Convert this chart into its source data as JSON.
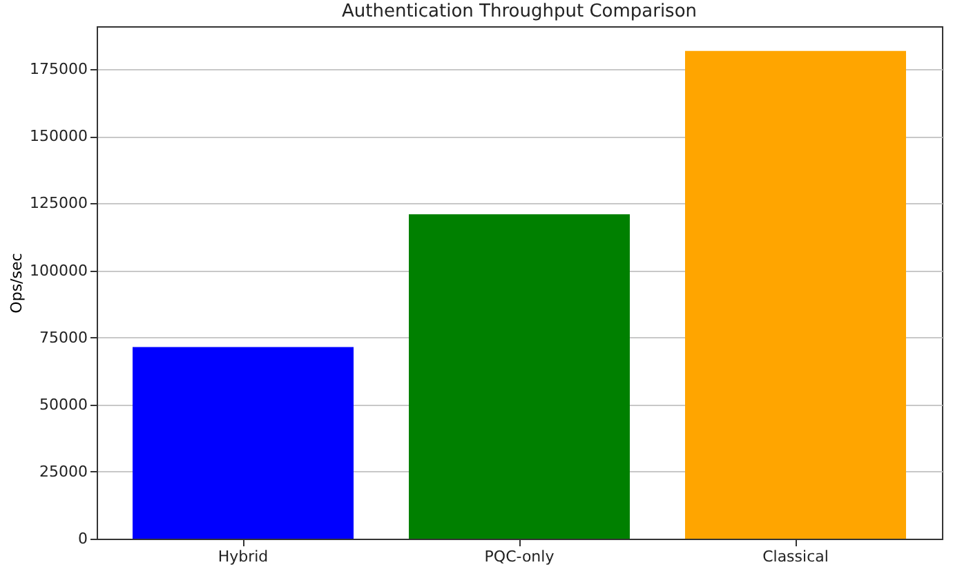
{
  "chart_data": {
    "type": "bar",
    "title": "Authentication Throughput Comparison",
    "ylabel": "Ops/sec",
    "categories": [
      "Hybrid",
      "PQC-only",
      "Classical"
    ],
    "values": [
      71400,
      120900,
      181800
    ],
    "colors": [
      "#0000ff",
      "#008000",
      "#ffa500"
    ],
    "ylim": [
      0,
      191000
    ],
    "yticks": [
      0,
      25000,
      50000,
      75000,
      100000,
      125000,
      150000,
      175000
    ],
    "grid": "y"
  }
}
